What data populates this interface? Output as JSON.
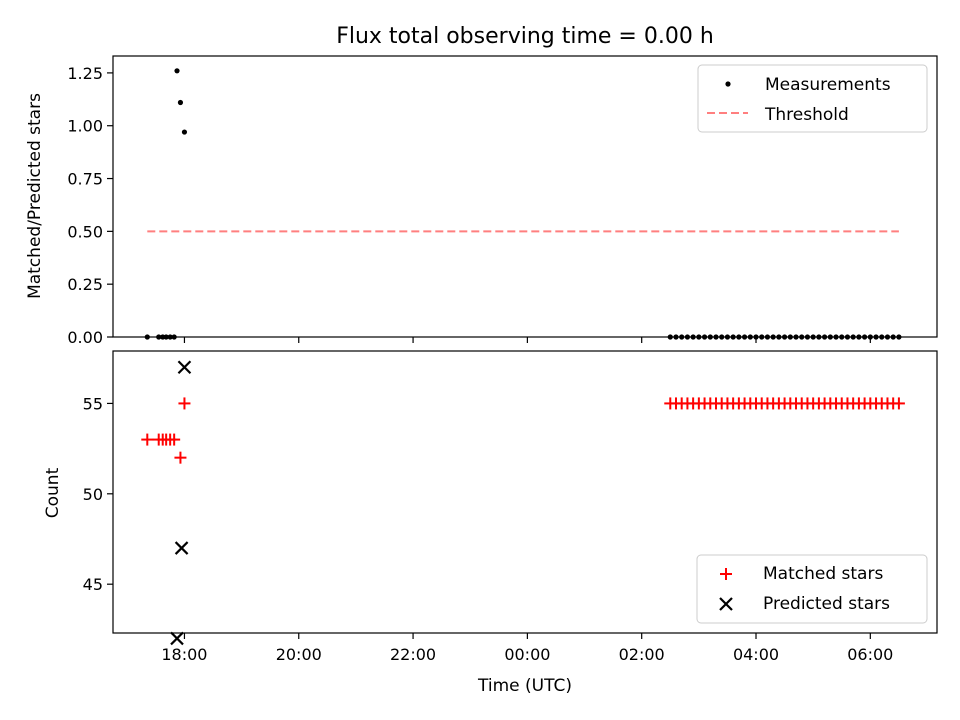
{
  "chart_data": [
    {
      "type": "scatter",
      "title": "Flux total observing time = 0.00 h",
      "xlabel": "",
      "ylabel": "Matched/Predicted stars",
      "ylim": [
        0,
        1.33
      ],
      "yticks": [
        "0.00",
        "0.25",
        "0.50",
        "0.75",
        "1.00",
        "1.25"
      ],
      "ytick_values": [
        0,
        0.25,
        0.5,
        0.75,
        1.0,
        1.25
      ],
      "legend_position": "top-right",
      "series": [
        {
          "name": "Measurements",
          "marker": "dot",
          "color": "#000000",
          "x": [
            17.35,
            17.55,
            17.62,
            17.68,
            17.75,
            17.82,
            17.87,
            17.93,
            18.0,
            2.5,
            2.6,
            2.7,
            2.8,
            2.9,
            3.0,
            3.1,
            3.2,
            3.3,
            3.4,
            3.5,
            3.6,
            3.7,
            3.8,
            3.9,
            4.0,
            4.1,
            4.2,
            4.3,
            4.4,
            4.5,
            4.6,
            4.7,
            4.8,
            4.9,
            5.0,
            5.1,
            5.2,
            5.3,
            5.4,
            5.5,
            5.6,
            5.7,
            5.8,
            5.9,
            6.0,
            6.1,
            6.2,
            6.3,
            6.4,
            6.5
          ],
          "y": [
            0,
            0,
            0,
            0,
            0,
            0,
            1.26,
            1.11,
            0.97,
            0,
            0,
            0,
            0,
            0,
            0,
            0,
            0,
            0,
            0,
            0,
            0,
            0,
            0,
            0,
            0,
            0,
            0,
            0,
            0,
            0,
            0,
            0,
            0,
            0,
            0,
            0,
            0,
            0,
            0,
            0,
            0,
            0,
            0,
            0,
            0,
            0,
            0,
            0,
            0,
            0
          ]
        },
        {
          "name": "Threshold",
          "marker": "dashed-line",
          "color": "#ff7f7f",
          "x": [
            17.35,
            6.5
          ],
          "y": [
            0.5,
            0.5
          ]
        }
      ]
    },
    {
      "type": "scatter",
      "xlabel": "Time (UTC)",
      "ylabel": "Count",
      "ylim": [
        42.3,
        57.9
      ],
      "yticks": [
        "45",
        "50",
        "55"
      ],
      "ytick_values": [
        45,
        50,
        55
      ],
      "xticks": [
        "18:00",
        "20:00",
        "22:00",
        "00:00",
        "02:00",
        "04:00",
        "06:00"
      ],
      "xtick_values": [
        18,
        20,
        22,
        0,
        2,
        4,
        6
      ],
      "xlim": [
        "16:45",
        "07:10"
      ],
      "legend_position": "bottom-right",
      "series": [
        {
          "name": "Matched stars",
          "marker": "plus",
          "color": "#ff0000",
          "x": [
            17.35,
            17.55,
            17.62,
            17.68,
            17.75,
            17.82,
            17.93,
            18.0,
            2.5,
            2.6,
            2.7,
            2.8,
            2.9,
            3.0,
            3.1,
            3.2,
            3.3,
            3.4,
            3.5,
            3.6,
            3.7,
            3.8,
            3.9,
            4.0,
            4.1,
            4.2,
            4.3,
            4.4,
            4.5,
            4.6,
            4.7,
            4.8,
            4.9,
            5.0,
            5.1,
            5.2,
            5.3,
            5.4,
            5.5,
            5.6,
            5.7,
            5.8,
            5.9,
            6.0,
            6.1,
            6.2,
            6.3,
            6.4,
            6.5
          ],
          "y": [
            53,
            53,
            53,
            53,
            53,
            53,
            52,
            55,
            55,
            55,
            55,
            55,
            55,
            55,
            55,
            55,
            55,
            55,
            55,
            55,
            55,
            55,
            55,
            55,
            55,
            55,
            55,
            55,
            55,
            55,
            55,
            55,
            55,
            55,
            55,
            55,
            55,
            55,
            55,
            55,
            55,
            55,
            55,
            55,
            55,
            55,
            55,
            55,
            55
          ]
        },
        {
          "name": "Predicted stars",
          "marker": "x",
          "color": "#000000",
          "x": [
            17.87,
            17.95,
            18.0
          ],
          "y": [
            42,
            47,
            57
          ]
        }
      ]
    }
  ]
}
